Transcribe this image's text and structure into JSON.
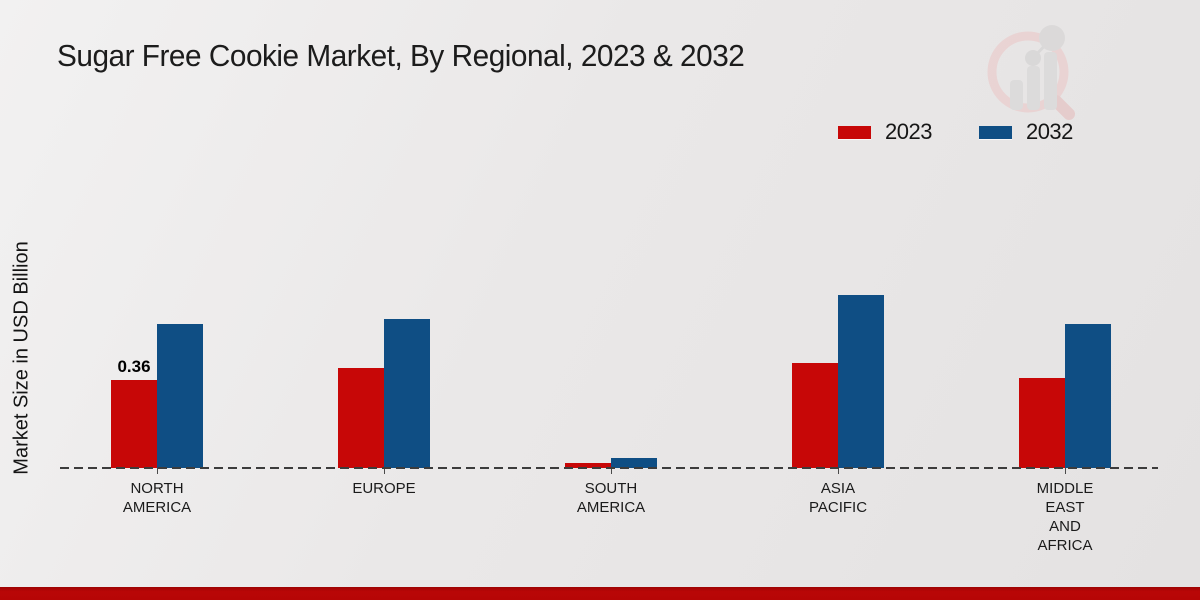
{
  "page": {
    "title": "Sugar Free Cookie Market, By Regional, 2023 & 2032"
  },
  "chart_data": {
    "type": "bar",
    "title": "Sugar Free Cookie Market, By Regional, 2023 & 2032",
    "xlabel": "",
    "ylabel": "Market Size in USD Billion",
    "categories": [
      "NORTH\nAMERICA",
      "EUROPE",
      "SOUTH\nAMERICA",
      "ASIA\nPACIFIC",
      "MIDDLE\nEAST\nAND\nAFRICA"
    ],
    "series": [
      {
        "name": "2023",
        "color": "#c70707",
        "values": [
          0.36,
          0.41,
          0.02,
          0.43,
          0.37
        ]
      },
      {
        "name": "2032",
        "color": "#0f4e84",
        "values": [
          0.59,
          0.61,
          0.04,
          0.71,
          0.59
        ]
      }
    ],
    "annotations": [
      {
        "series": "2023",
        "category_index": 0,
        "text": "0.36"
      }
    ],
    "ylim": [
      0,
      0.8
    ],
    "legend_position": "top-right",
    "grid": false,
    "baseline_style": "dashed"
  },
  "footer": {
    "band_color": "#b60505"
  }
}
